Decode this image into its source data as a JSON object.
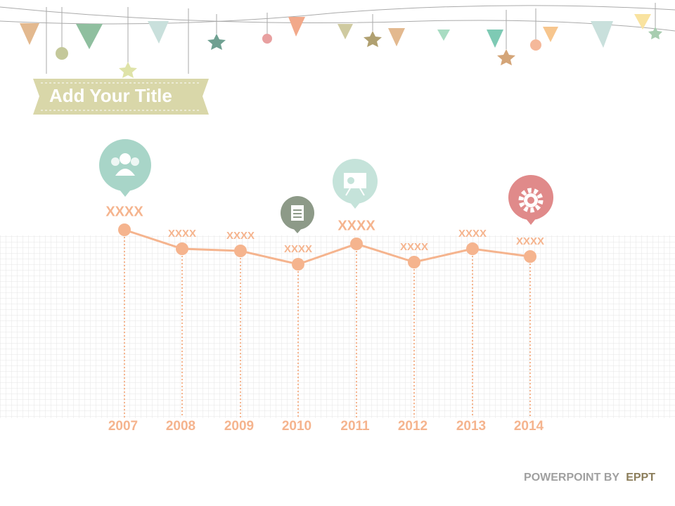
{
  "title": "Add Your Title",
  "timeline": [
    {
      "year": "2007",
      "label": "XXXX"
    },
    {
      "year": "2008",
      "label": "XXXX"
    },
    {
      "year": "2009",
      "label": "XXXX"
    },
    {
      "year": "2010",
      "label": "XXXX"
    },
    {
      "year": "2011",
      "label": "XXXX"
    },
    {
      "year": "2012",
      "label": "XXXX"
    },
    {
      "year": "2013",
      "label": "XXXX"
    },
    {
      "year": "2014",
      "label": "XXXX"
    }
  ],
  "footer": {
    "prefix": "POWERPOINT BY",
    "brand": "EPPT"
  }
}
